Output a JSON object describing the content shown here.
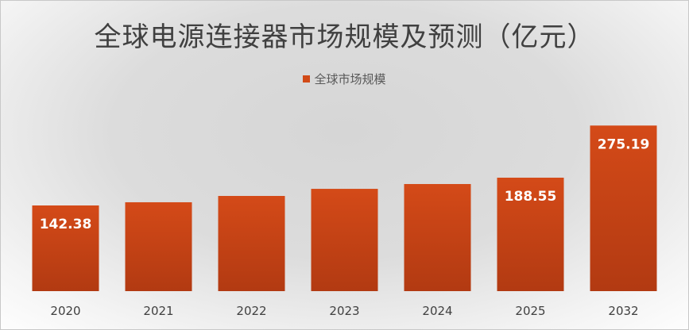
{
  "chart_data": {
    "type": "bar",
    "title": "全球电源连接器市场规模及预测（亿元）",
    "categories": [
      "2020",
      "2021",
      "2022",
      "2023",
      "2024",
      "2025",
      "2032"
    ],
    "series": [
      {
        "name": "全球市场规模",
        "values": [
          142.38,
          147.7,
          158.2,
          170.0,
          178.0,
          188.55,
          275.19
        ]
      }
    ],
    "data_labels": [
      "142.38",
      "",
      "",
      "",
      "",
      "188.55",
      "275.19"
    ],
    "ylim": [
      0,
      300
    ],
    "grid": false,
    "legend": "top",
    "colors": {
      "bar": "#d14a17",
      "bar_dark": "#b23a12",
      "label": "#ffffff"
    }
  }
}
